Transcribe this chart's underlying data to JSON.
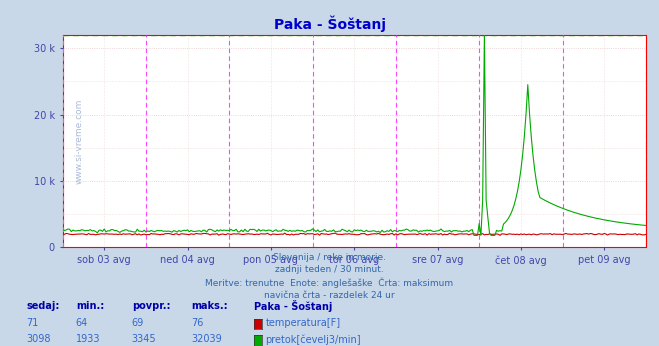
{
  "title": "Paka - Šoštanj",
  "bg_color": "#c8d8e8",
  "plot_bg_color": "#ffffff",
  "ylim": [
    0,
    32039
  ],
  "yticks": [
    0,
    10000,
    20000,
    30000
  ],
  "ytick_labels": [
    "0",
    "10 k",
    "20 k",
    "30 k"
  ],
  "xlim": [
    0,
    336
  ],
  "n_points": 337,
  "day_labels": [
    "sob 03 avg",
    "ned 04 avg",
    "pon 05 avg",
    "tor 06 avg",
    "sre 07 avg",
    "čet 08 avg",
    "pet 09 avg"
  ],
  "day_tick_positions": [
    24,
    72,
    120,
    168,
    216,
    264,
    312
  ],
  "day_vline_positions": [
    0,
    48,
    96,
    144,
    192,
    240,
    288,
    336
  ],
  "grid_h_color": "#e8c8c8",
  "grid_v_color": "#e8c8c8",
  "vline_color": "#ff44ff",
  "max_line_color": "#00dd00",
  "max_value": 32039,
  "title_color": "#0000cc",
  "axis_color": "#ff0000",
  "tick_color": "#4444aa",
  "watermark_color": "#4466aa",
  "info_text_color": "#3366aa",
  "temp_color": "#cc0000",
  "flow_color": "#00aa00",
  "table_header_color": "#0000aa",
  "table_value_color": "#3366cc",
  "info_lines": [
    "Slovenija / reke in morje.",
    "zadnji teden / 30 minut.",
    "Meritve: trenutne  Enote: anglešaške  Črta: maksimum",
    "navična črta - razdelek 24 ur"
  ]
}
